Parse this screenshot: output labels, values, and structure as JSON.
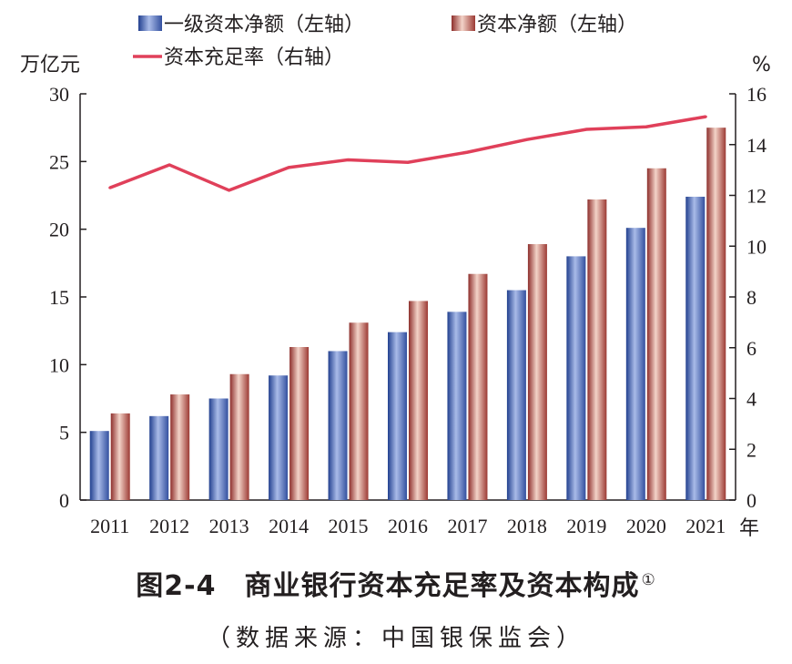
{
  "chart_data": {
    "type": "bar",
    "categories": [
      "2011",
      "2012",
      "2013",
      "2014",
      "2015",
      "2016",
      "2017",
      "2018",
      "2019",
      "2020",
      "2021"
    ],
    "series": [
      {
        "name": "一级资本净额（左轴）",
        "type": "bar",
        "axis": "left",
        "values": [
          5.1,
          6.2,
          7.5,
          9.2,
          11.0,
          12.4,
          13.9,
          15.5,
          18.0,
          20.1,
          22.4
        ]
      },
      {
        "name": "资本净额（左轴）",
        "type": "bar",
        "axis": "left",
        "values": [
          6.4,
          7.8,
          9.3,
          11.3,
          13.1,
          14.7,
          16.7,
          18.9,
          22.2,
          24.5,
          27.5
        ]
      },
      {
        "name": "资本充足率（右轴）",
        "type": "line",
        "axis": "right",
        "values": [
          12.3,
          13.2,
          12.2,
          13.1,
          13.4,
          13.3,
          13.7,
          14.2,
          14.6,
          14.7,
          15.1
        ]
      }
    ],
    "y_left": {
      "unit": "万亿元",
      "range": [
        0,
        30
      ],
      "ticks": [
        0,
        5,
        10,
        15,
        20,
        25,
        30
      ]
    },
    "y_right": {
      "unit": "%",
      "range": [
        0,
        16
      ],
      "ticks": [
        0,
        2,
        4,
        6,
        8,
        10,
        12,
        14,
        16
      ]
    },
    "x_unit": "年",
    "legend_position": "top",
    "grid": false,
    "colors": {
      "bar1": "#4a64b5",
      "bar2": "#b5524b",
      "line": "#e0405a",
      "axis": "#231f20"
    }
  },
  "caption": {
    "title": "图2-4　商业银行资本充足率及资本构成",
    "footnote_mark": "①",
    "source": "（数据来源：中国银保监会）"
  }
}
